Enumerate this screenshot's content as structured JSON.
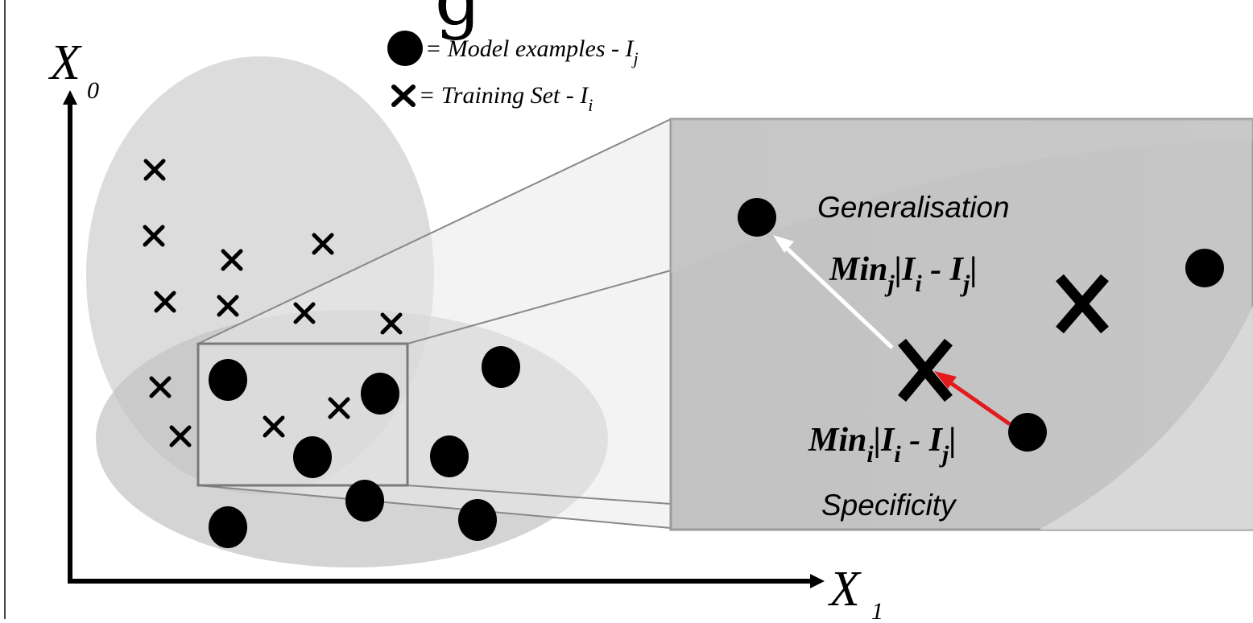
{
  "title_fragment": "g                                  p",
  "axes": {
    "y_label": "X",
    "y_sub": "0",
    "x_label": "X",
    "x_sub": "1"
  },
  "legend": {
    "model_label": "= Model examples - I",
    "model_sub": "j",
    "training_label": "= Training Set - I",
    "training_sub": "i"
  },
  "zoom": {
    "generalisation": "Generalisation",
    "specificity": "Specificity",
    "min_j_text": "Min",
    "min_j_sub": "j",
    "min_j_abs": "|I",
    "min_j_i": "i",
    "min_j_minus": " - I",
    "min_j_j": "j",
    "min_j_close": "|",
    "min_i_text": "Min",
    "min_i_sub": "i",
    "min_i_abs": "|I",
    "min_i_i": "i",
    "min_i_minus": " - I",
    "min_i_j": "j",
    "min_i_close": "|"
  },
  "colors": {
    "arrow_red": "#e41a1c",
    "arrow_white": "#ffffff",
    "zoom_bg": "#c4c4c4",
    "ellipse_top": "#d8d8d8",
    "ellipse_bottom": "#c8c8c8"
  }
}
